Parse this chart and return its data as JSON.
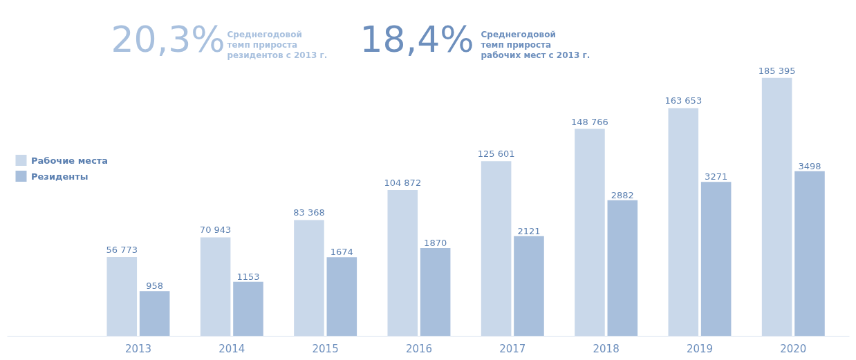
{
  "chart_data": {
    "type": "bar",
    "categories": [
      "2013",
      "2014",
      "2015",
      "2016",
      "2017",
      "2018",
      "2019",
      "2020"
    ],
    "series": [
      {
        "name": "Рабочие места",
        "color": "#c9d8ea",
        "values": [
          56773,
          70943,
          83368,
          104872,
          125601,
          148766,
          163653,
          185395
        ],
        "value_labels": [
          "56 773",
          "70 943",
          "83 368",
          "104 872",
          "125 601",
          "148 766",
          "163 653",
          "185 395"
        ]
      },
      {
        "name": "Резиденты",
        "color": "#a8bfdc",
        "axis": "y2",
        "values": [
          958,
          1153,
          1674,
          1870,
          2121,
          2882,
          3271,
          3498
        ],
        "value_labels": [
          "958",
          "1153",
          "1674",
          "1870",
          "2121",
          "2882",
          "3271",
          "3498"
        ]
      }
    ],
    "legend": "left",
    "tick_labels": "x",
    "annotations": [
      "20,3%",
      "Среднегодовой темп прироста резидентов с 2013 г.",
      "18,4%",
      "Среднегодовой темп прироста рабочих мест с 2013 г."
    ]
  }
}
